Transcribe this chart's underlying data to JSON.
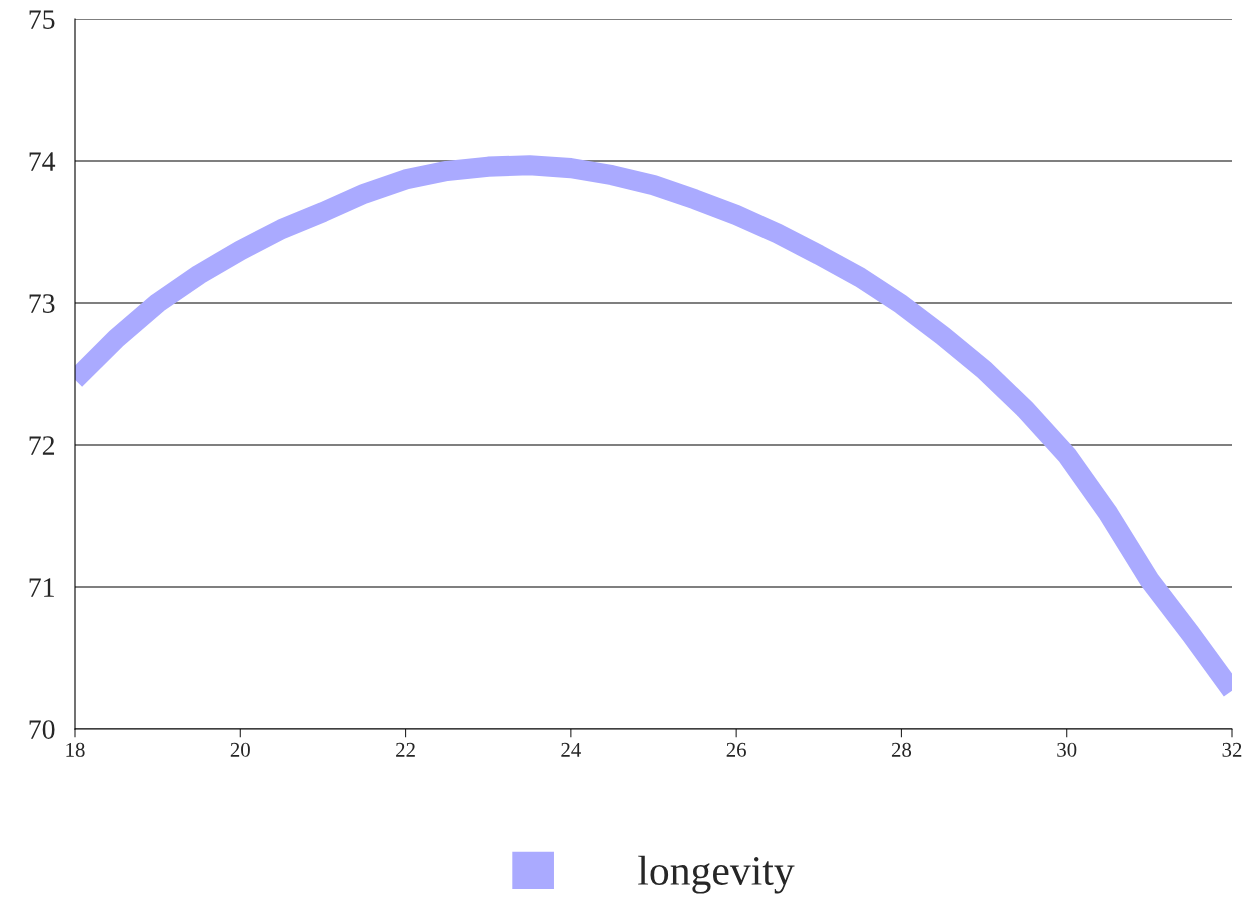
{
  "chart_data": {
    "type": "line",
    "x": [
      18,
      18.5,
      19,
      19.5,
      20,
      20.5,
      21,
      21.5,
      22,
      22.5,
      23,
      23.5,
      24,
      24.5,
      25,
      25.5,
      26,
      26.5,
      27,
      27.5,
      28,
      28.5,
      29,
      29.5,
      30,
      30.5,
      31,
      31.5,
      32
    ],
    "series": [
      {
        "name": "longevity",
        "color": "#aaaaff",
        "values": [
          72.46,
          72.75,
          73.0,
          73.2,
          73.37,
          73.52,
          73.64,
          73.77,
          73.87,
          73.93,
          73.96,
          73.97,
          73.95,
          73.9,
          73.83,
          73.73,
          73.62,
          73.49,
          73.34,
          73.18,
          72.99,
          72.77,
          72.53,
          72.25,
          71.93,
          71.52,
          71.05,
          70.67,
          70.27
        ]
      }
    ],
    "xlim": [
      18,
      32
    ],
    "xticks": [
      18,
      20,
      22,
      24,
      26,
      28,
      30,
      32
    ],
    "ylim": [
      70,
      75
    ],
    "yticks": [
      70,
      71,
      72,
      73,
      74,
      75
    ],
    "grid": "y",
    "legend": "bottom",
    "marker": "none",
    "line_style": "solid"
  }
}
